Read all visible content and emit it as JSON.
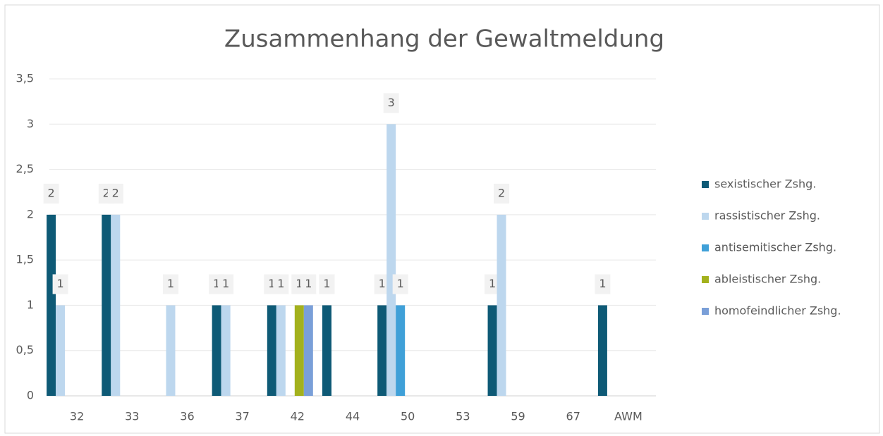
{
  "chart_data": {
    "type": "bar",
    "title": "Zusammenhang der Gewaltmeldung",
    "categories": [
      "32",
      "33",
      "36",
      "37",
      "42",
      "44",
      "50",
      "53",
      "59",
      "67",
      "AWM"
    ],
    "series": [
      {
        "name": "sexistischer Zshg.",
        "color": "#0e5a76",
        "values": [
          2,
          2,
          null,
          1,
          1,
          1,
          1,
          null,
          1,
          null,
          1
        ]
      },
      {
        "name": "rassistischer Zshg.",
        "color": "#bdd7ee",
        "values": [
          1,
          2,
          1,
          1,
          1,
          null,
          3,
          null,
          2,
          null,
          null
        ]
      },
      {
        "name": "antisemitischer Zshg.",
        "color": "#3fa0d8",
        "values": [
          null,
          null,
          null,
          null,
          null,
          null,
          1,
          null,
          null,
          null,
          null
        ]
      },
      {
        "name": "ableistischer Zshg.",
        "color": "#a3b11d",
        "values": [
          null,
          null,
          null,
          null,
          1,
          null,
          null,
          null,
          null,
          null,
          null
        ]
      },
      {
        "name": "homofeindlicher Zshg.",
        "color": "#7a9fd8",
        "values": [
          null,
          null,
          null,
          null,
          1,
          null,
          null,
          null,
          null,
          null,
          null
        ]
      }
    ],
    "ylim": [
      0,
      3.5
    ],
    "yticks": [
      0,
      {
        "value": 0.5,
        "label": "0,5"
      },
      1,
      {
        "value": 1.5,
        "label": "1,5"
      },
      2,
      {
        "value": 2.5,
        "label": "2,5"
      },
      3,
      {
        "value": 3.5,
        "label": "3,5"
      }
    ],
    "grid": true,
    "legend": "right"
  }
}
